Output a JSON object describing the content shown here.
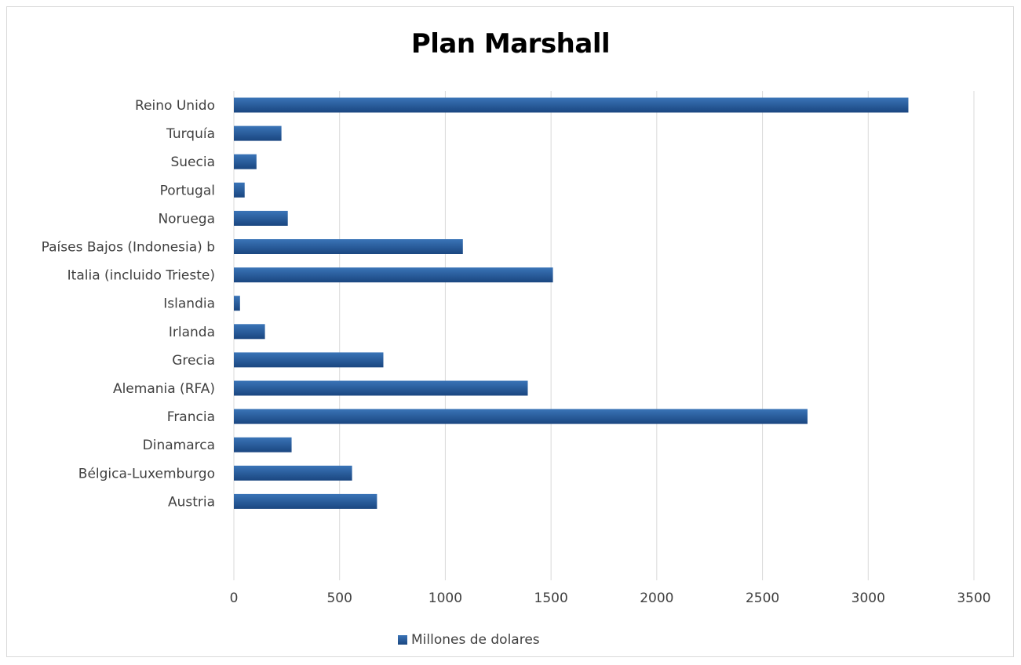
{
  "chart_data": {
    "type": "bar",
    "orientation": "horizontal",
    "title": "Plan Marshall",
    "xlabel": "",
    "ylabel": "",
    "categories": [
      "Austria",
      "Bélgica-Luxemburgo",
      "Dinamarca",
      "Francia",
      "Alemania (RFA)",
      "Grecia",
      "Irlanda",
      "Islandia",
      "Italia (incluido Trieste)",
      "Países Bajos (Indonesia) b",
      "Noruega",
      "Portugal",
      "Suecia",
      "Turquía",
      "Reino Unido"
    ],
    "series": [
      {
        "name": "Millones de dolares",
        "values": [
          677,
          559,
          273,
          2713,
          1390,
          707,
          147,
          29,
          1509,
          1083,
          255,
          51,
          107,
          225,
          3190
        ]
      }
    ],
    "xlim": [
      0,
      3500
    ],
    "xticks": [
      0,
      500,
      1000,
      1500,
      2000,
      2500,
      3000,
      3500
    ],
    "grid": true,
    "legend_position": "bottom",
    "colors": {
      "bar_top": "#3a74b7",
      "bar_bottom": "#1a4680",
      "grid": "#d9d9d9"
    }
  }
}
